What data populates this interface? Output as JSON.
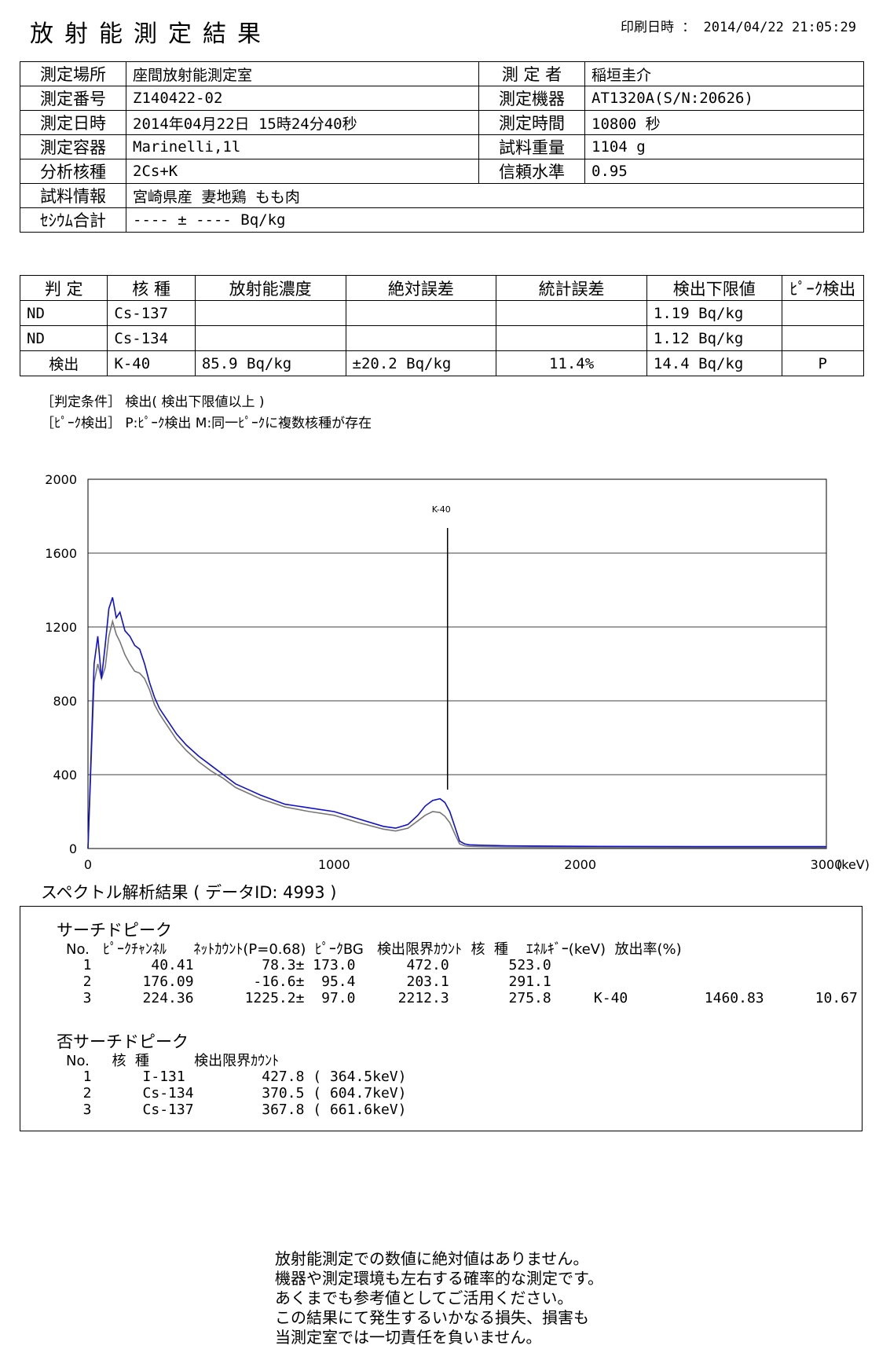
{
  "header": {
    "title": "放射能測定結果",
    "print_label": "印刷日時 ： 2014/04/22 21:05:29"
  },
  "info": {
    "rows": [
      {
        "l1": "測定場所",
        "v1": "座間放射能測定室",
        "l2": "測 定 者",
        "v2": "稲垣圭介"
      },
      {
        "l1": "測定番号",
        "v1": "Z140422-02",
        "l2": "測定機器",
        "v2": "AT1320A(S/N:20626)"
      },
      {
        "l1": "測定日時",
        "v1": "2014年04月22日 15時24分40秒",
        "l2": "測定時間",
        "v2": "10800 秒"
      },
      {
        "l1": "測定容器",
        "v1": "Marinelli,1l",
        "l2": "試料重量",
        "v2": "1104 g"
      },
      {
        "l1": "分析核種",
        "v1": "2Cs+K",
        "l2": "信頼水準",
        "v2": "0.95"
      }
    ],
    "sample_label": "試料情報",
    "sample_value": "宮崎県産 妻地鶏 もも肉",
    "cesium_label": "ｾｼｳﾑ合計",
    "cesium_value": "---- ± ---- Bq/kg"
  },
  "results": {
    "headers": [
      "判 定",
      "核 種",
      "放射能濃度",
      "絶対誤差",
      "統計誤差",
      "検出下限値",
      "ﾋﾟｰｸ検出"
    ],
    "rows": [
      [
        "ND",
        "Cs-137",
        "",
        "",
        "",
        "1.19 Bq/kg",
        ""
      ],
      [
        "ND",
        "Cs-134",
        "",
        "",
        "",
        "1.12 Bq/kg",
        ""
      ],
      [
        "検出",
        "K-40",
        "85.9 Bq/kg",
        "±20.2 Bq/kg",
        "11.4%",
        "14.4 Bq/kg",
        "P"
      ]
    ]
  },
  "notes": {
    "cond": "［判定条件］ 検出( 検出下限値以上 )",
    "peak": "［ﾋﾟｰｸ検出］ P:ﾋﾟｰｸ検出 M:同一ﾋﾟｰｸに複数核種が存在"
  },
  "chart_data": {
    "type": "line",
    "xlim": [
      0,
      3000
    ],
    "ylim": [
      0,
      2000
    ],
    "x_ticks": [
      "0",
      "1000",
      "2000",
      "3000"
    ],
    "y_ticks": [
      "0",
      "400",
      "800",
      "1200",
      "1600",
      "2000"
    ],
    "x_unit": "(keV)",
    "grid": true,
    "annotation": {
      "label": "K-40",
      "x": 1460.83
    },
    "series": [
      {
        "color": "#1010d0",
        "x": [
          0,
          15,
          25,
          40,
          55,
          70,
          85,
          100,
          115,
          130,
          150,
          170,
          190,
          210,
          230,
          250,
          270,
          290,
          310,
          330,
          360,
          400,
          450,
          500,
          550,
          600,
          650,
          700,
          800,
          900,
          1000,
          1100,
          1200,
          1250,
          1300,
          1340,
          1370,
          1400,
          1430,
          1450,
          1470,
          1490,
          1510,
          1530,
          1550,
          1600,
          1700,
          2000,
          2500,
          3000
        ],
        "y": [
          0,
          600,
          1000,
          1150,
          920,
          1100,
          1300,
          1360,
          1250,
          1280,
          1180,
          1150,
          1100,
          1080,
          1000,
          900,
          820,
          760,
          720,
          680,
          620,
          560,
          500,
          450,
          400,
          350,
          320,
          290,
          240,
          220,
          200,
          160,
          120,
          110,
          130,
          180,
          230,
          260,
          270,
          250,
          200,
          120,
          40,
          25,
          20,
          18,
          15,
          12,
          10,
          10
        ]
      },
      {
        "color": "#777777",
        "x": [
          0,
          15,
          25,
          40,
          55,
          70,
          85,
          100,
          115,
          130,
          150,
          170,
          190,
          210,
          230,
          250,
          270,
          290,
          310,
          330,
          360,
          400,
          450,
          500,
          550,
          600,
          650,
          700,
          800,
          900,
          1000,
          1100,
          1200,
          1250,
          1300,
          1340,
          1370,
          1400,
          1430,
          1450,
          1470,
          1490,
          1510,
          1530,
          1550,
          1600,
          1700,
          2000,
          2500,
          3000
        ],
        "y": [
          0,
          550,
          900,
          1000,
          920,
          980,
          1150,
          1230,
          1160,
          1120,
          1050,
          1000,
          960,
          950,
          920,
          860,
          780,
          730,
          690,
          650,
          590,
          530,
          470,
          420,
          380,
          330,
          300,
          270,
          225,
          200,
          180,
          140,
          105,
          95,
          110,
          150,
          180,
          200,
          195,
          175,
          140,
          80,
          25,
          15,
          12,
          10,
          8,
          7,
          6,
          6
        ]
      }
    ]
  },
  "spectrum": {
    "title": "スペクトル解析結果 ( データID: 4993 )",
    "search": {
      "title": "サーチドピーク",
      "header": "No.   ﾋﾟｰｸﾁｬﾝﾈﾙ      ﾈｯﾄｶｳﾝﾄ(P=0.68)  ﾋﾟｰｸBG   検出限界ｶｳﾝﾄ  核  種    ｴﾈﾙｷﾞｰ(keV)  放出率(%)",
      "rows": [
        "  1       40.41        78.3± 173.0      472.0       523.0",
        "  2      176.09       -16.6±  95.4      203.1       291.1",
        "  3      224.36      1225.2±  97.0     2212.3       275.8     K-40         1460.83      10.67"
      ]
    },
    "nosearch": {
      "title": "否サーチドピーク",
      "header": "No.     核  種          検出限界ｶｳﾝﾄ",
      "rows": [
        "  1      I-131         427.8 ( 364.5keV)",
        "  2      Cs-134        370.5 ( 604.7keV)",
        "  3      Cs-137        367.8 ( 661.6keV)"
      ]
    }
  },
  "disclaimer": [
    "放射能測定での数値に絶対値はありません。",
    "機器や測定環境も左右する確率的な測定です。",
    "あくまでも参考値としてご活用ください。",
    "この結果にて発生するいかなる損失、損害も",
    "当測定室では一切責任を負いません。"
  ]
}
